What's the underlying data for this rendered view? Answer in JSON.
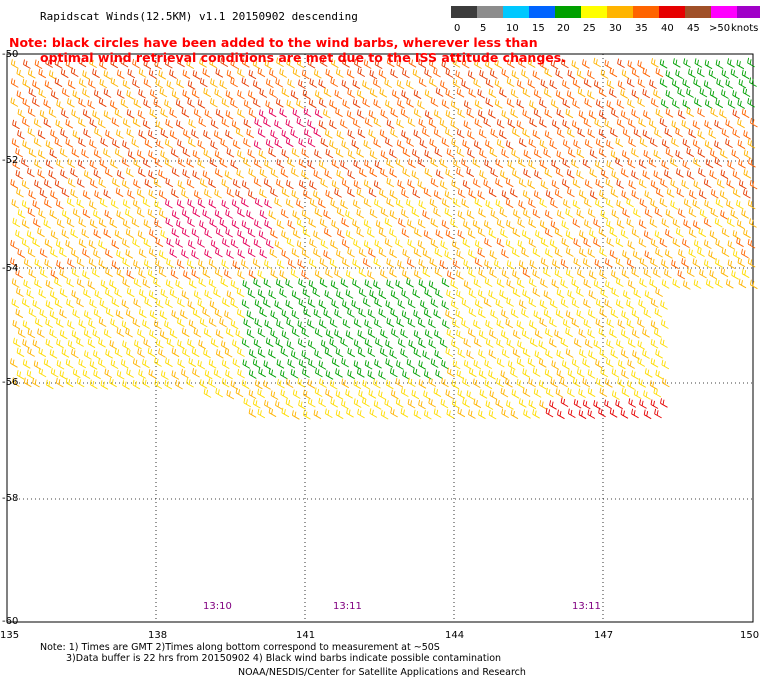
{
  "title": "Rapidscat Winds(12.5KM) v1.1 20150902 descending",
  "note": {
    "line1": "Note: black circles have been added to the wind barbs, wherever less than",
    "line2": "optimal wind retrieval conditions are met due to the ISS attitude changes."
  },
  "legend": {
    "units": "knots",
    "labels": [
      "0",
      "5",
      "10",
      "15",
      "20",
      "25",
      "30",
      "35",
      "40",
      "45",
      ">50"
    ],
    "colors": [
      "#3c3c3c",
      "#8c8c8c",
      "#00c8ff",
      "#0064ff",
      "#00a000",
      "#ffff00",
      "#ffb400",
      "#ff6400",
      "#e60000",
      "#a05028",
      "#ff00ff",
      "#a000c8",
      "#3c0096"
    ]
  },
  "axes": {
    "lat_labels": [
      "-50",
      "-52",
      "-54",
      "-56",
      "-58",
      "-60"
    ],
    "lon_labels": [
      "135",
      "138",
      "141",
      "144",
      "147",
      "150"
    ],
    "lat_range": [
      -60,
      -50
    ],
    "lon_range": [
      135,
      150
    ]
  },
  "pass_times": [
    {
      "label": "13:10",
      "lon": 140.2
    },
    {
      "label": "13:11",
      "lon": 142.8
    },
    {
      "label": "13:11",
      "lon": 147.6
    }
  ],
  "footnotes": {
    "line1": "Note: 1) Times are GMT 2)Times along bottom correspond to measurement at ~50S",
    "line2": "3)Data buffer is 22 hrs from 20150902 4) Black wind barbs indicate possible contamination",
    "credit": "NOAA/NESDIS/Center for Satellite Applications and Research"
  }
}
